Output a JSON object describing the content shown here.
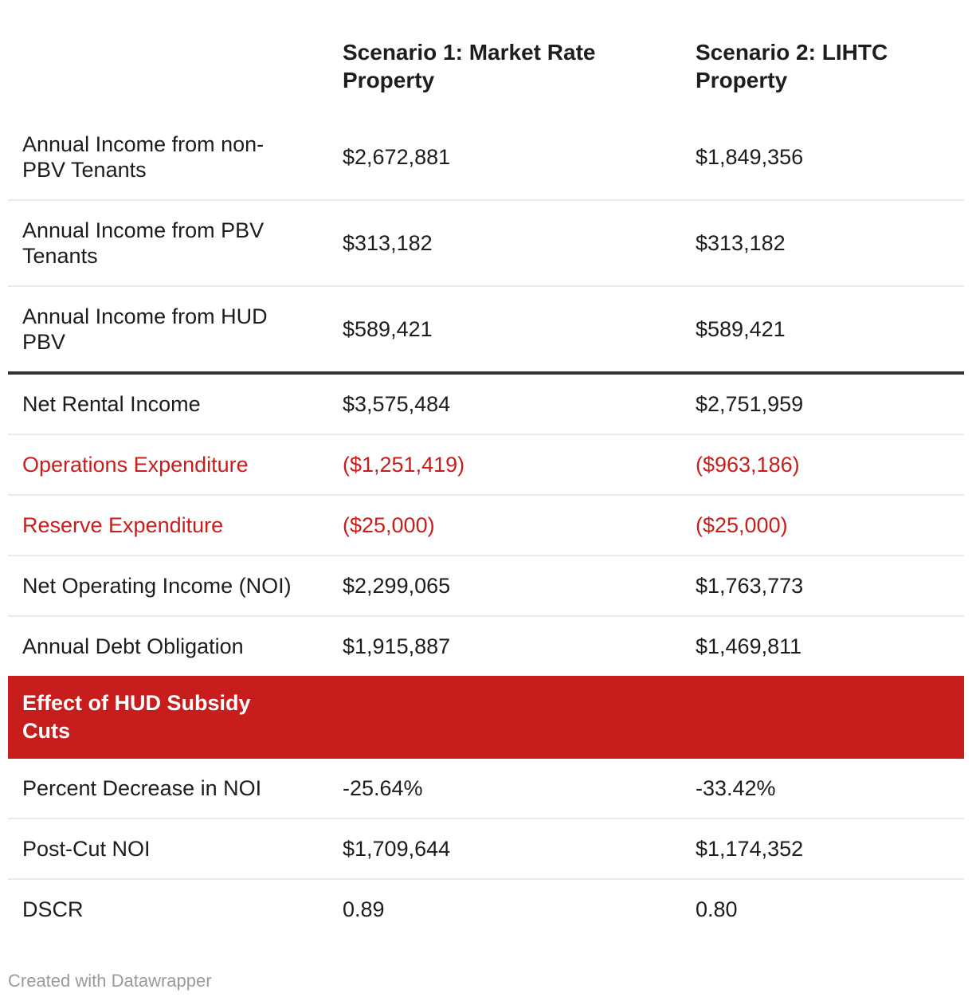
{
  "colors": {
    "accent_red": "#c71e1d",
    "body_text": "#1d1d1d",
    "separator_light": "#ebebeb",
    "separator_dark": "#333333",
    "footer_grey": "#9b9b9b",
    "banner_text": "#ffffff"
  },
  "header": {
    "col1": "Scenario 1: Market Rate Property",
    "col2": "Scenario 2: LIHTC Property"
  },
  "chart_data": {
    "type": "table",
    "columns": [
      "",
      "Scenario 1: Market Rate Property",
      "Scenario 2: LIHTC Property"
    ],
    "rows": [
      {
        "label": "Annual Income from non-PBV Tenants",
        "v1": "$2,672,881",
        "v2": "$1,849,356",
        "style": "normal",
        "sep_after": "light"
      },
      {
        "label": "Annual Income from PBV Tenants",
        "v1": "$313,182",
        "v2": "$313,182",
        "style": "normal",
        "sep_after": "light"
      },
      {
        "label": "Annual Income from HUD PBV",
        "v1": "$589,421",
        "v2": "$589,421",
        "style": "normal",
        "sep_after": "dark"
      },
      {
        "label": "Net Rental Income",
        "v1": "$3,575,484",
        "v2": "$2,751,959",
        "style": "normal",
        "sep_after": "light"
      },
      {
        "label": "Operations Expenditure",
        "v1": "($1,251,419)",
        "v2": "($963,186)",
        "style": "red-text",
        "sep_after": "light"
      },
      {
        "label": "Reserve Expenditure",
        "v1": "($25,000)",
        "v2": "($25,000)",
        "style": "red-text",
        "sep_after": "light"
      },
      {
        "label": "Net Operating Income (NOI)",
        "v1": "$2,299,065",
        "v2": "$1,763,773",
        "style": "normal",
        "sep_after": "light"
      },
      {
        "label": "Annual Debt Obligation",
        "v1": "$1,915,887",
        "v2": "$1,469,811",
        "style": "normal",
        "sep_after": "none"
      },
      {
        "label": "Effect of HUD Subsidy Cuts",
        "v1": "",
        "v2": "",
        "style": "banner",
        "sep_after": "none"
      },
      {
        "label": "Percent Decrease in NOI",
        "v1": "-25.64%",
        "v2": "-33.42%",
        "style": "normal",
        "sep_after": "light"
      },
      {
        "label": "Post-Cut NOI",
        "v1": "$1,709,644",
        "v2": "$1,174,352",
        "style": "normal",
        "sep_after": "light"
      },
      {
        "label": "DSCR",
        "v1": "0.89",
        "v2": "0.80",
        "style": "normal",
        "sep_after": "none"
      }
    ]
  },
  "footer": {
    "credit": "Created with Datawrapper"
  }
}
